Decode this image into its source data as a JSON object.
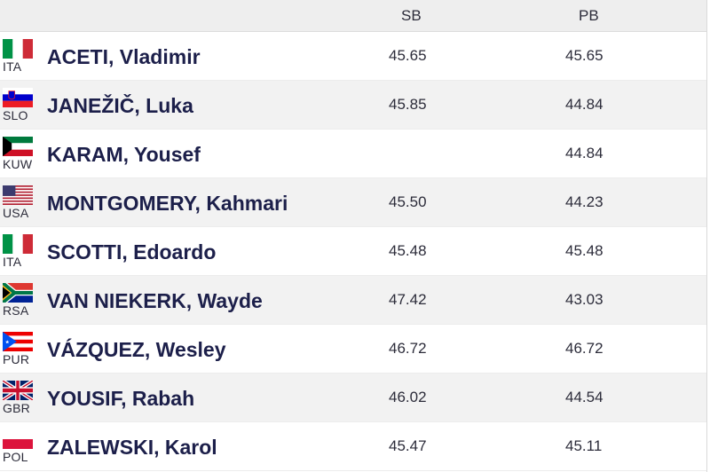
{
  "header": {
    "sb": "SB",
    "pb": "PB"
  },
  "athletes": [
    {
      "code": "ITA",
      "name": "ACETI, Vladimir",
      "sb": "45.65",
      "pb": "45.65",
      "flag_icon": "italy-flag-icon"
    },
    {
      "code": "SLO",
      "name": "JANEŽIČ, Luka",
      "sb": "45.85",
      "pb": "44.84",
      "flag_icon": "slovenia-flag-icon"
    },
    {
      "code": "KUW",
      "name": "KARAM, Yousef",
      "sb": "",
      "pb": "44.84",
      "flag_icon": "kuwait-flag-icon"
    },
    {
      "code": "USA",
      "name": "MONTGOMERY, Kahmari",
      "sb": "45.50",
      "pb": "44.23",
      "flag_icon": "usa-flag-icon"
    },
    {
      "code": "ITA",
      "name": "SCOTTI, Edoardo",
      "sb": "45.48",
      "pb": "45.48",
      "flag_icon": "italy-flag-icon"
    },
    {
      "code": "RSA",
      "name": "VAN NIEKERK, Wayde",
      "sb": "47.42",
      "pb": "43.03",
      "flag_icon": "south-africa-flag-icon"
    },
    {
      "code": "PUR",
      "name": "VÁZQUEZ, Wesley",
      "sb": "46.72",
      "pb": "46.72",
      "flag_icon": "puerto-rico-flag-icon"
    },
    {
      "code": "GBR",
      "name": "YOUSIF, Rabah",
      "sb": "46.02",
      "pb": "44.54",
      "flag_icon": "great-britain-flag-icon"
    },
    {
      "code": "POL",
      "name": "ZALEWSKI, Karol",
      "sb": "45.47",
      "pb": "45.11",
      "flag_icon": "poland-flag-icon"
    }
  ]
}
